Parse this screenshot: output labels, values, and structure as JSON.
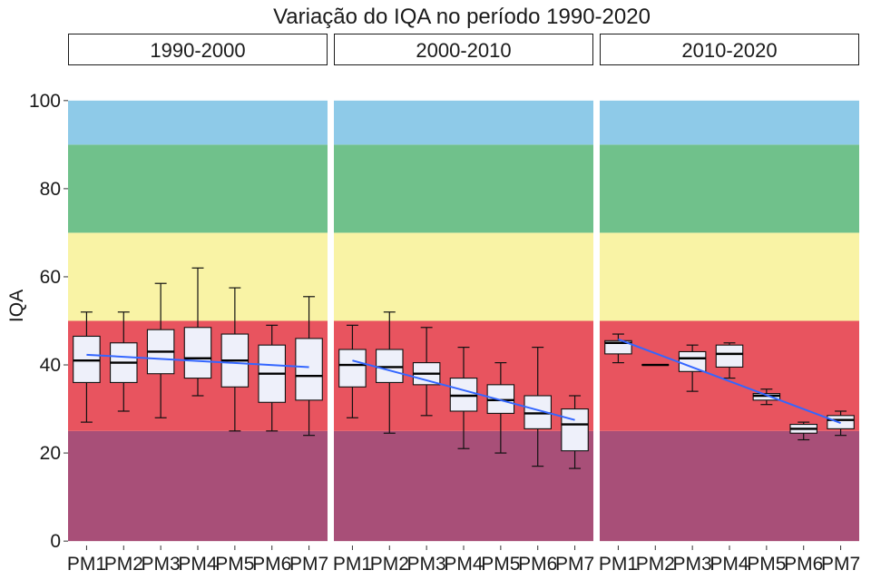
{
  "chart_data": {
    "type": "boxplot",
    "title": "Variação do IQA no período 1990-2020",
    "ylabel": "IQA",
    "xlabel": "",
    "ylim": [
      -1,
      108
    ],
    "y_ticks": [
      0,
      20,
      40,
      60,
      80,
      100
    ],
    "categories": [
      "PM1",
      "PM2",
      "PM3",
      "PM4",
      "PM5",
      "PM6",
      "PM7"
    ],
    "bands": [
      {
        "from": 0,
        "to": 25,
        "color": "#a84f78"
      },
      {
        "from": 25,
        "to": 50,
        "color": "#e8545f"
      },
      {
        "from": 50,
        "to": 70,
        "color": "#f9f3a5"
      },
      {
        "from": 70,
        "to": 90,
        "color": "#70c18b"
      },
      {
        "from": 90,
        "to": 100,
        "color": "#8ecae8"
      }
    ],
    "colors": {
      "box_fill": "#eef0fa",
      "trend_line": "#3366ff"
    },
    "panels": [
      {
        "label": "1990-2000",
        "boxes": [
          {
            "category": "PM1",
            "min": 27,
            "q1": 36,
            "median": 41,
            "q3": 46.5,
            "max": 52
          },
          {
            "category": "PM2",
            "min": 29.5,
            "q1": 36,
            "median": 40.5,
            "q3": 45,
            "max": 52
          },
          {
            "category": "PM3",
            "min": 28,
            "q1": 38,
            "median": 43,
            "q3": 48,
            "max": 58.5
          },
          {
            "category": "PM4",
            "min": 33,
            "q1": 37,
            "median": 41.5,
            "q3": 48.5,
            "max": 62
          },
          {
            "category": "PM5",
            "min": 25,
            "q1": 35,
            "median": 41,
            "q3": 47,
            "max": 57.5
          },
          {
            "category": "PM6",
            "min": 25,
            "q1": 31.5,
            "median": 38,
            "q3": 44.5,
            "max": 49
          },
          {
            "category": "PM7",
            "min": 24,
            "q1": 32,
            "median": 37.5,
            "q3": 46,
            "max": 55.5
          }
        ],
        "trend": [
          42.3,
          39.5
        ]
      },
      {
        "label": "2000-2010",
        "boxes": [
          {
            "category": "PM1",
            "min": 28,
            "q1": 35,
            "median": 40,
            "q3": 43.5,
            "max": 49
          },
          {
            "category": "PM2",
            "min": 24.5,
            "q1": 36,
            "median": 39.5,
            "q3": 43.5,
            "max": 52
          },
          {
            "category": "PM3",
            "min": 28.5,
            "q1": 35.5,
            "median": 38,
            "q3": 40.5,
            "max": 48.5
          },
          {
            "category": "PM4",
            "min": 21,
            "q1": 29.5,
            "median": 33,
            "q3": 37,
            "max": 44
          },
          {
            "category": "PM5",
            "min": 20,
            "q1": 29,
            "median": 32,
            "q3": 35.5,
            "max": 40.5
          },
          {
            "category": "PM6",
            "min": 17,
            "q1": 25.5,
            "median": 29,
            "q3": 33,
            "max": 44
          },
          {
            "category": "PM7",
            "min": 16.5,
            "q1": 20.5,
            "median": 26.5,
            "q3": 30,
            "max": 33
          }
        ],
        "trend": [
          41,
          27.5
        ]
      },
      {
        "label": "2010-2020",
        "boxes": [
          {
            "category": "PM1",
            "min": 40.5,
            "q1": 42.5,
            "median": 45,
            "q3": 45.5,
            "max": 47
          },
          {
            "category": "PM2",
            "min": 40,
            "q1": 40,
            "median": 40,
            "q3": 40,
            "max": 40
          },
          {
            "category": "PM3",
            "min": 34,
            "q1": 38.5,
            "median": 41.5,
            "q3": 43,
            "max": 44.5
          },
          {
            "category": "PM4",
            "min": 37,
            "q1": 39.5,
            "median": 42.5,
            "q3": 44.5,
            "max": 45
          },
          {
            "category": "PM5",
            "min": 31,
            "q1": 32,
            "median": 33,
            "q3": 33.5,
            "max": 34.5
          },
          {
            "category": "PM6",
            "min": 23,
            "q1": 24.5,
            "median": 25.5,
            "q3": 26.5,
            "max": 27
          },
          {
            "category": "PM7",
            "min": 24,
            "q1": 25.5,
            "median": 27.5,
            "q3": 28.5,
            "max": 29.5
          }
        ],
        "trend": [
          45.8,
          26.8
        ]
      }
    ]
  }
}
